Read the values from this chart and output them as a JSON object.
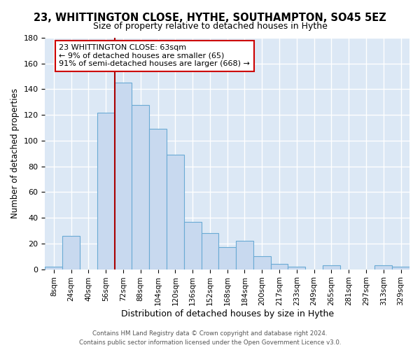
{
  "title": "23, WHITTINGTON CLOSE, HYTHE, SOUTHAMPTON, SO45 5EZ",
  "subtitle": "Size of property relative to detached houses in Hythe",
  "xlabel": "Distribution of detached houses by size in Hythe",
  "ylabel": "Number of detached properties",
  "bar_labels": [
    "8sqm",
    "24sqm",
    "40sqm",
    "56sqm",
    "72sqm",
    "88sqm",
    "104sqm",
    "120sqm",
    "136sqm",
    "152sqm",
    "168sqm",
    "184sqm",
    "200sqm",
    "217sqm",
    "233sqm",
    "249sqm",
    "265sqm",
    "281sqm",
    "297sqm",
    "313sqm",
    "329sqm"
  ],
  "bar_values": [
    2,
    26,
    0,
    122,
    145,
    128,
    109,
    89,
    37,
    28,
    17,
    22,
    10,
    4,
    2,
    0,
    3,
    0,
    0,
    3,
    2
  ],
  "bar_color": "#c8d9ef",
  "bar_edge_color": "#6aaad4",
  "ylim": [
    0,
    180
  ],
  "yticks": [
    0,
    20,
    40,
    60,
    80,
    100,
    120,
    140,
    160,
    180
  ],
  "vline_pos": 3.5,
  "vline_color": "#aa0000",
  "annotation_text": "23 WHITTINGTON CLOSE: 63sqm\n← 9% of detached houses are smaller (65)\n91% of semi-detached houses are larger (668) →",
  "annotation_box_edge_color": "#cc0000",
  "footer_line1": "Contains HM Land Registry data © Crown copyright and database right 2024.",
  "footer_line2": "Contains public sector information licensed under the Open Government Licence v3.0."
}
